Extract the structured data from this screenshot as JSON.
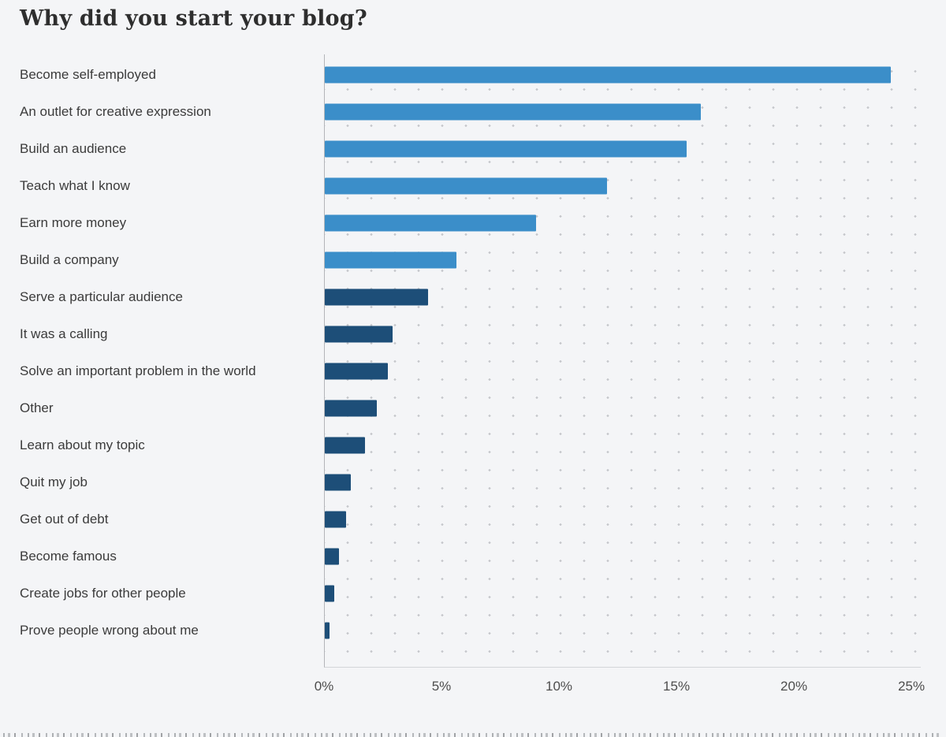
{
  "page": {
    "background": "#f4f5f7"
  },
  "chart_data": {
    "type": "bar",
    "orientation": "horizontal",
    "title": "Why did you start your blog?",
    "xlabel": "",
    "ylabel": "",
    "xlim": [
      0,
      25.4
    ],
    "grid": "dotted",
    "legend": "none",
    "categories": [
      "Become self-employed",
      "An outlet for creative expression",
      "Build an audience",
      "Teach what I know",
      "Earn more money",
      "Build a company",
      "Serve a particular audience",
      "It was a calling",
      "Solve an important problem in the world",
      "Other",
      "Learn about my topic",
      "Quit my job",
      "Get out of debt",
      "Become famous",
      "Create jobs for other people",
      "Prove people wrong about me"
    ],
    "values": [
      24.1,
      16.0,
      15.4,
      12.0,
      9.0,
      5.6,
      4.4,
      2.9,
      2.7,
      2.2,
      1.7,
      1.1,
      0.9,
      0.6,
      0.4,
      0.2
    ],
    "bar_colors": [
      "#3b8ec9",
      "#3b8ec9",
      "#3b8ec9",
      "#3b8ec9",
      "#3b8ec9",
      "#3b8ec9",
      "#1d4e78",
      "#1d4e78",
      "#1d4e78",
      "#1d4e78",
      "#1d4e78",
      "#1d4e78",
      "#1d4e78",
      "#1d4e78",
      "#1d4e78",
      "#1d4e78"
    ],
    "colors": {
      "primary_light_blue": "#3b8ec9",
      "primary_dark_navy": "#1d4e78",
      "background": "#f4f5f7",
      "grid_dot": "#c5c7cb",
      "axis_line": "#b3b5b9"
    },
    "x_ticks": [
      {
        "value": 0,
        "label": "0%"
      },
      {
        "value": 5,
        "label": "5%"
      },
      {
        "value": 10,
        "label": "10%"
      },
      {
        "value": 15,
        "label": "15%"
      },
      {
        "value": 20,
        "label": "20%"
      },
      {
        "value": 25,
        "label": "25%"
      }
    ]
  }
}
